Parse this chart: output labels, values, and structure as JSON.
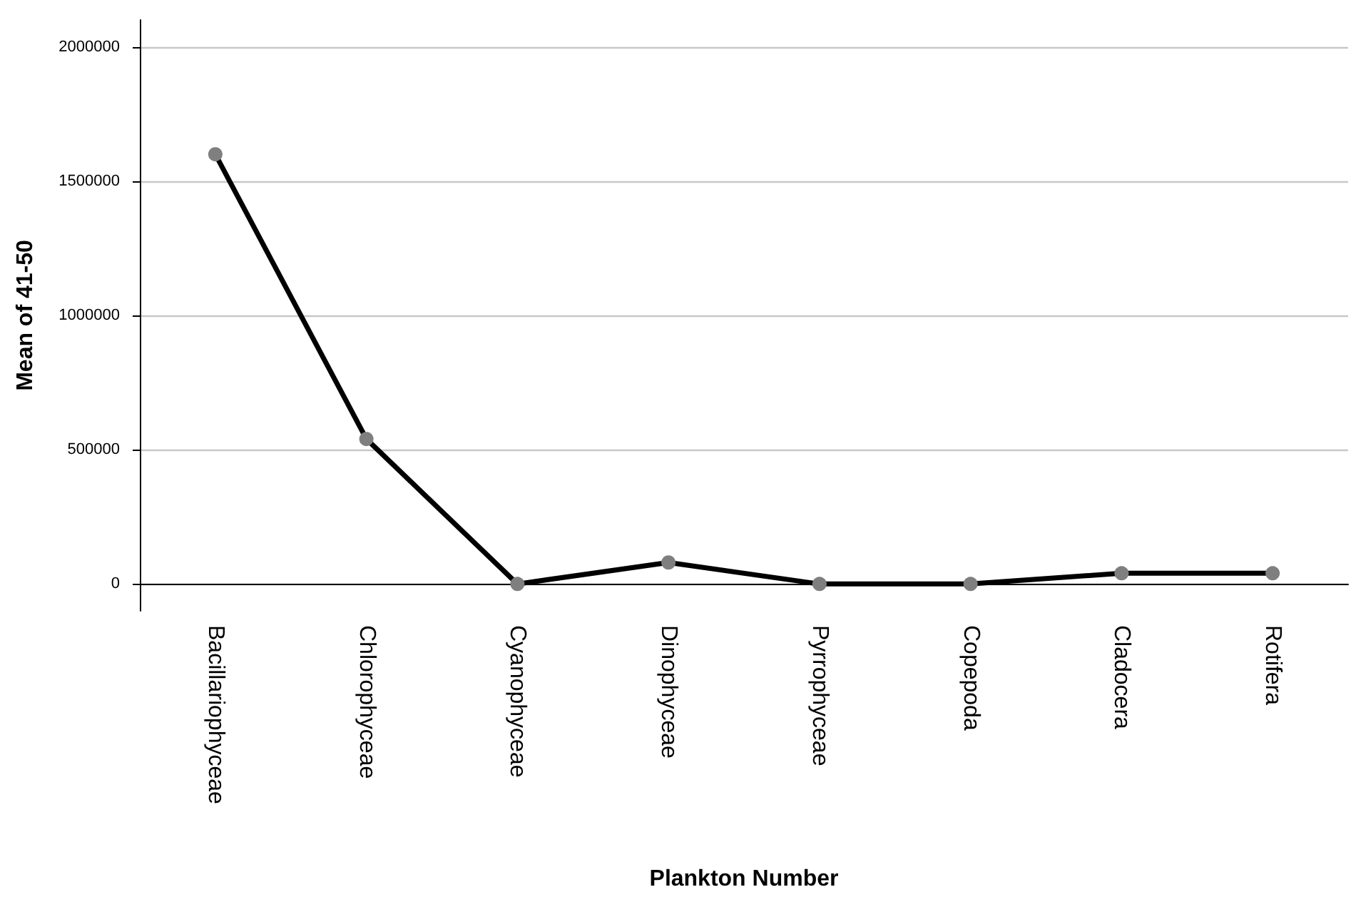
{
  "chart_data": {
    "type": "line",
    "xlabel": "Plankton Number",
    "ylabel": "Mean of 41-50",
    "categories": [
      "Bacillariophyceae",
      "Chlorophyceae",
      "Cyanophyceae",
      "Dinophyceae",
      "Pyrrophyceae",
      "Copepoda",
      "Cladocera",
      "Rotifera"
    ],
    "series": [
      {
        "color": "#000000",
        "values": [
          1600000,
          540000,
          0,
          80000,
          0,
          0,
          40000,
          40000
        ]
      }
    ],
    "ylim": [
      -100000,
      2100000
    ],
    "yticks": [
      0,
      500000,
      1000000,
      1500000,
      2000000
    ],
    "grid": "y",
    "marker": "circle",
    "line_style": "solid"
  }
}
